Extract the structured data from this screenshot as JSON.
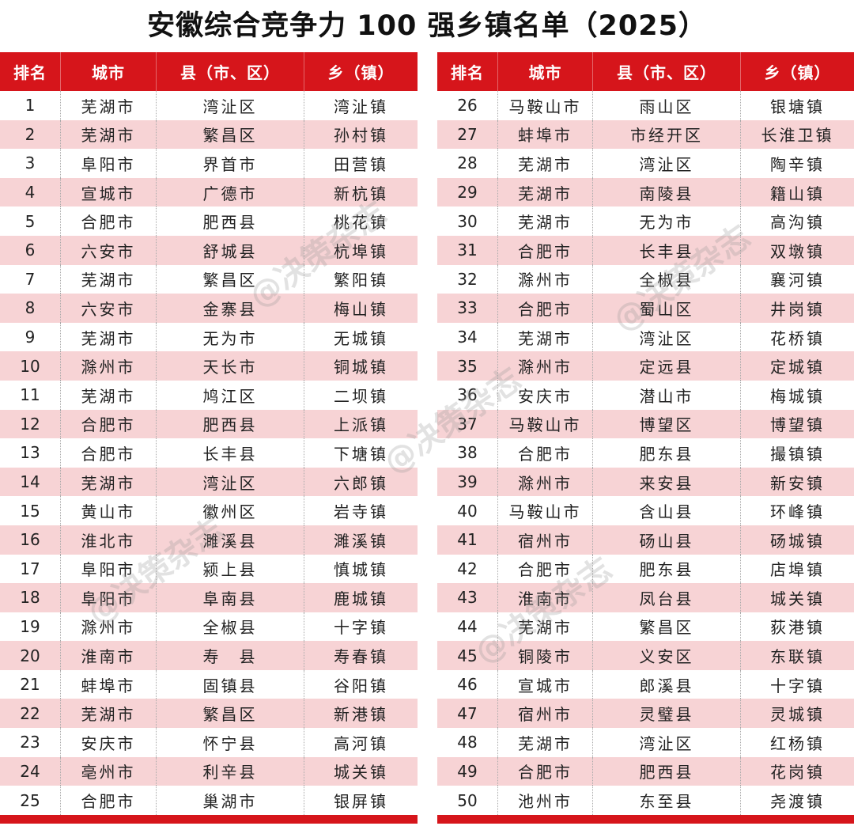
{
  "title": "安徽综合竞争力 100 强乡镇名单（2025）",
  "watermark": "@决策杂志",
  "colors": {
    "header_bg": "#d6151b",
    "alt_row_bg": "#f7d3d5"
  },
  "headers": [
    "排名",
    "城市",
    "县（市、区）",
    "乡（镇）"
  ],
  "rows": [
    [
      "1",
      "芜湖市",
      "湾沚区",
      "湾沚镇"
    ],
    [
      "2",
      "芜湖市",
      "繁昌区",
      "孙村镇"
    ],
    [
      "3",
      "阜阳市",
      "界首市",
      "田营镇"
    ],
    [
      "4",
      "宣城市",
      "广德市",
      "新杭镇"
    ],
    [
      "5",
      "合肥市",
      "肥西县",
      "桃花镇"
    ],
    [
      "6",
      "六安市",
      "舒城县",
      "杭埠镇"
    ],
    [
      "7",
      "芜湖市",
      "繁昌区",
      "繁阳镇"
    ],
    [
      "8",
      "六安市",
      "金寨县",
      "梅山镇"
    ],
    [
      "9",
      "芜湖市",
      "无为市",
      "无城镇"
    ],
    [
      "10",
      "滁州市",
      "天长市",
      "铜城镇"
    ],
    [
      "11",
      "芜湖市",
      "鸠江区",
      "二坝镇"
    ],
    [
      "12",
      "合肥市",
      "肥西县",
      "上派镇"
    ],
    [
      "13",
      "合肥市",
      "长丰县",
      "下塘镇"
    ],
    [
      "14",
      "芜湖市",
      "湾沚区",
      "六郎镇"
    ],
    [
      "15",
      "黄山市",
      "徽州区",
      "岩寺镇"
    ],
    [
      "16",
      "淮北市",
      "濉溪县",
      "濉溪镇"
    ],
    [
      "17",
      "阜阳市",
      "颍上县",
      "慎城镇"
    ],
    [
      "18",
      "阜阳市",
      "阜南县",
      "鹿城镇"
    ],
    [
      "19",
      "滁州市",
      "全椒县",
      "十字镇"
    ],
    [
      "20",
      "淮南市",
      "寿　县",
      "寿春镇"
    ],
    [
      "21",
      "蚌埠市",
      "固镇县",
      "谷阳镇"
    ],
    [
      "22",
      "芜湖市",
      "繁昌区",
      "新港镇"
    ],
    [
      "23",
      "安庆市",
      "怀宁县",
      "高河镇"
    ],
    [
      "24",
      "亳州市",
      "利辛县",
      "城关镇"
    ],
    [
      "25",
      "合肥市",
      "巢湖市",
      "银屏镇"
    ],
    [
      "26",
      "马鞍山市",
      "雨山区",
      "银塘镇"
    ],
    [
      "27",
      "蚌埠市",
      "市经开区",
      "长淮卫镇"
    ],
    [
      "28",
      "芜湖市",
      "湾沚区",
      "陶辛镇"
    ],
    [
      "29",
      "芜湖市",
      "南陵县",
      "籍山镇"
    ],
    [
      "30",
      "芜湖市",
      "无为市",
      "高沟镇"
    ],
    [
      "31",
      "合肥市",
      "长丰县",
      "双墩镇"
    ],
    [
      "32",
      "滁州市",
      "全椒县",
      "襄河镇"
    ],
    [
      "33",
      "合肥市",
      "蜀山区",
      "井岗镇"
    ],
    [
      "34",
      "芜湖市",
      "湾沚区",
      "花桥镇"
    ],
    [
      "35",
      "滁州市",
      "定远县",
      "定城镇"
    ],
    [
      "36",
      "安庆市",
      "潜山市",
      "梅城镇"
    ],
    [
      "37",
      "马鞍山市",
      "博望区",
      "博望镇"
    ],
    [
      "38",
      "合肥市",
      "肥东县",
      "撮镇镇"
    ],
    [
      "39",
      "滁州市",
      "来安县",
      "新安镇"
    ],
    [
      "40",
      "马鞍山市",
      "含山县",
      "环峰镇"
    ],
    [
      "41",
      "宿州市",
      "砀山县",
      "砀城镇"
    ],
    [
      "42",
      "合肥市",
      "肥东县",
      "店埠镇"
    ],
    [
      "43",
      "淮南市",
      "凤台县",
      "城关镇"
    ],
    [
      "44",
      "芜湖市",
      "繁昌区",
      "荻港镇"
    ],
    [
      "45",
      "铜陵市",
      "义安区",
      "东联镇"
    ],
    [
      "46",
      "宣城市",
      "郎溪县",
      "十字镇"
    ],
    [
      "47",
      "宿州市",
      "灵璧县",
      "灵城镇"
    ],
    [
      "48",
      "芜湖市",
      "湾沚区",
      "红杨镇"
    ],
    [
      "49",
      "合肥市",
      "肥西县",
      "花岗镇"
    ],
    [
      "50",
      "池州市",
      "东至县",
      "尧渡镇"
    ]
  ]
}
